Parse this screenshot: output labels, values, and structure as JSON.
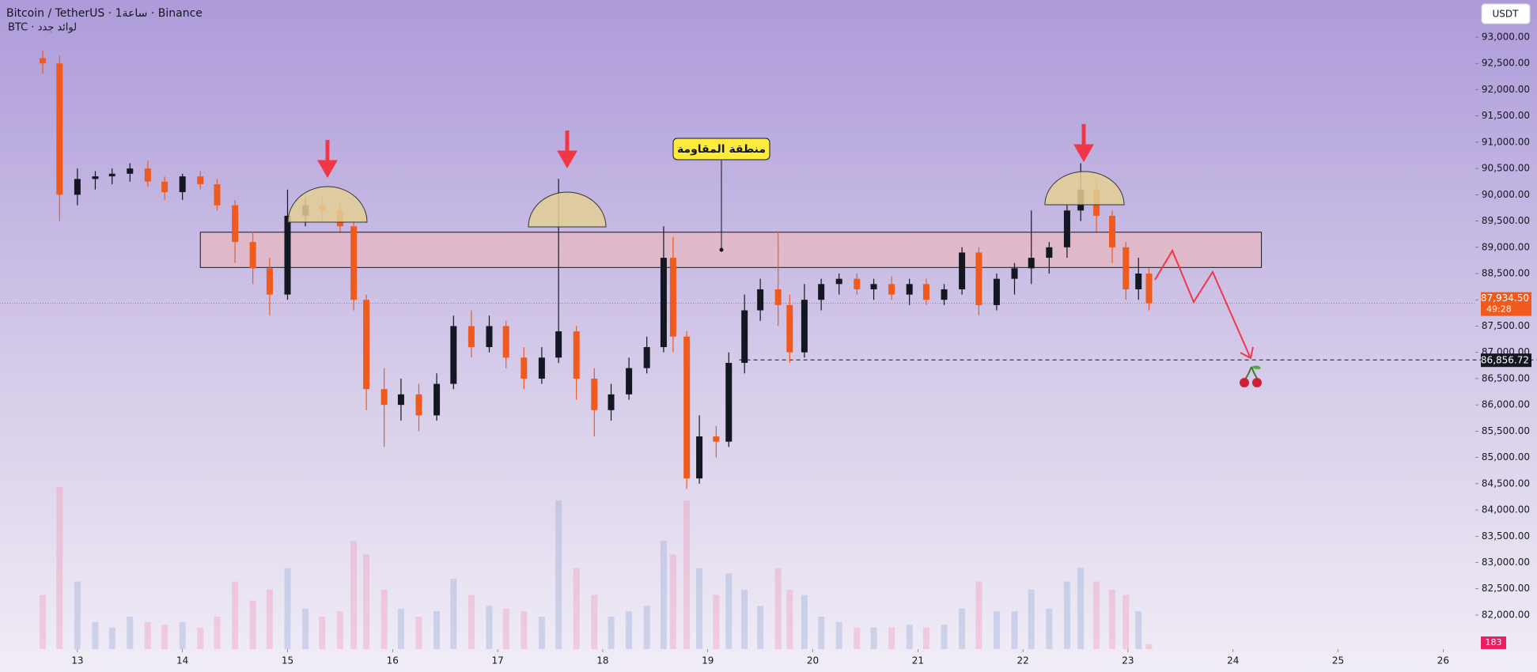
{
  "chart_data": {
    "type": "candlestick",
    "title": "Bitcoin / TetherUS · 1ساعة · Binance",
    "subtitle": "BTC · لوائد جدد",
    "currency": "USDT",
    "up_color": "#131722",
    "down_color": "#f05a1e",
    "x": [
      12.67,
      12.83,
      13.0,
      13.17,
      13.33,
      13.5,
      13.67,
      13.83,
      14.0,
      14.17,
      14.33,
      14.5,
      14.67,
      14.83,
      15.0,
      15.17,
      15.33,
      15.5,
      15.63,
      15.75,
      15.92,
      16.08,
      16.25,
      16.42,
      16.58,
      16.75,
      16.92,
      17.08,
      17.25,
      17.42,
      17.58,
      17.75,
      17.92,
      18.08,
      18.25,
      18.42,
      18.58,
      18.67,
      18.8,
      18.92,
      19.08,
      19.2,
      19.35,
      19.5,
      19.67,
      19.78,
      19.92,
      20.08,
      20.25,
      20.42,
      20.58,
      20.75,
      20.92,
      21.08,
      21.25,
      21.42,
      21.58,
      21.75,
      21.92,
      22.08,
      22.25,
      22.42,
      22.55,
      22.7,
      22.85,
      22.98,
      23.1,
      23.2
    ],
    "open": [
      92600,
      92500,
      90000,
      90300,
      90350,
      90400,
      90500,
      90250,
      90050,
      90350,
      90200,
      89800,
      89100,
      88600,
      88100,
      89600,
      89800,
      89700,
      89400,
      88000,
      86300,
      86000,
      86200,
      85800,
      86400,
      87500,
      87100,
      87500,
      86900,
      86500,
      86900,
      87400,
      86500,
      85900,
      86200,
      86700,
      87100,
      88800,
      87300,
      84600,
      85400,
      85300,
      86800,
      87800,
      88200,
      87900,
      87000,
      88000,
      88300,
      88400,
      88200,
      88300,
      88100,
      88300,
      88000,
      88200,
      88900,
      87900,
      88400,
      88600,
      88800,
      89000,
      89700,
      90100,
      89600,
      89000,
      88200,
      88500
    ],
    "high": [
      92750,
      92650,
      90500,
      90450,
      90500,
      90600,
      90650,
      90350,
      90400,
      90450,
      90300,
      89900,
      89300,
      88800,
      90100,
      89950,
      90000,
      89900,
      89500,
      88100,
      86700,
      86500,
      86400,
      86600,
      87700,
      87800,
      87700,
      87600,
      87100,
      87100,
      90300,
      87500,
      86700,
      86400,
      86900,
      87300,
      89400,
      89200,
      87400,
      85800,
      85600,
      87000,
      88100,
      88400,
      89300,
      88100,
      88300,
      88400,
      88500,
      88500,
      88400,
      88450,
      88400,
      88400,
      88300,
      89000,
      89000,
      88500,
      88700,
      89700,
      89100,
      89800,
      90600,
      90300,
      89700,
      89100,
      88800,
      88600
    ],
    "low": [
      92300,
      89500,
      89800,
      90100,
      90200,
      90250,
      90150,
      89900,
      89900,
      90100,
      89700,
      88700,
      88300,
      87700,
      88000,
      89400,
      89500,
      89300,
      87800,
      85900,
      85200,
      85700,
      85500,
      85700,
      86300,
      86900,
      87000,
      86700,
      86300,
      86400,
      86800,
      86100,
      85400,
      85700,
      86100,
      86600,
      87000,
      87000,
      84400,
      84500,
      85000,
      85200,
      86600,
      87600,
      87500,
      86800,
      86900,
      87800,
      88100,
      88100,
      88000,
      88000,
      87900,
      87900,
      87900,
      88100,
      87700,
      87800,
      88100,
      88300,
      88500,
      88800,
      89500,
      89300,
      88700,
      88000,
      88000,
      87800
    ],
    "close": [
      92500,
      90000,
      90300,
      90350,
      90400,
      90500,
      90250,
      90050,
      90350,
      90200,
      89800,
      89100,
      88600,
      88100,
      89600,
      89800,
      89700,
      89400,
      88000,
      86300,
      86000,
      86200,
      85800,
      86400,
      87500,
      87100,
      87500,
      86900,
      86500,
      86900,
      87400,
      86500,
      85900,
      86200,
      86700,
      87100,
      88800,
      87300,
      84600,
      85400,
      85300,
      86800,
      87800,
      88200,
      87900,
      87000,
      88000,
      88300,
      88400,
      88200,
      88300,
      88100,
      88300,
      88000,
      88200,
      88900,
      87900,
      88400,
      88600,
      88800,
      89000,
      89700,
      90100,
      89600,
      89000,
      88200,
      88500,
      87934.5
    ],
    "volume": [
      2000,
      6000,
      2500,
      1000,
      800,
      1200,
      1000,
      900,
      1000,
      800,
      1200,
      2500,
      1800,
      2200,
      3000,
      1500,
      1200,
      1400,
      4000,
      3500,
      2200,
      1500,
      1200,
      1400,
      2600,
      2000,
      1600,
      1500,
      1400,
      1200,
      5500,
      3000,
      2000,
      1200,
      1400,
      1600,
      4000,
      3500,
      5500,
      3000,
      2000,
      2800,
      2200,
      1600,
      3000,
      2200,
      2000,
      1200,
      1000,
      800,
      800,
      800,
      900,
      800,
      900,
      1500,
      2500,
      1400,
      1400,
      2200,
      1500,
      2500,
      3000,
      2500,
      2200,
      2000,
      1400,
      183
    ],
    "xlim": [
      12.263,
      26.306
    ],
    "ylim": [
      81352,
      93707
    ],
    "xticks": [
      13,
      14,
      15,
      16,
      17,
      18,
      19,
      20,
      21,
      22,
      23,
      24,
      25,
      26
    ],
    "yticks": [
      {
        "value": 82000,
        "label": "82,000.00"
      },
      {
        "value": 82500,
        "label": "82,500.00"
      },
      {
        "value": 83000,
        "label": "83,000.00"
      },
      {
        "value": 83500,
        "label": "83,500.00"
      },
      {
        "value": 84000,
        "label": "84,000.00"
      },
      {
        "value": 84500,
        "label": "84,500.00"
      },
      {
        "value": 85000,
        "label": "85,000.00"
      },
      {
        "value": 85500,
        "label": "85,500.00"
      },
      {
        "value": 86000,
        "label": "86,000.00"
      },
      {
        "value": 86500,
        "label": "86,500.00"
      },
      {
        "value": 87000,
        "label": "87,000.00"
      },
      {
        "value": 87500,
        "label": "87,500.00"
      },
      {
        "value": 88000,
        "label": "88,000.00"
      },
      {
        "value": 88500,
        "label": "88,500.00"
      },
      {
        "value": 89000,
        "label": "89,000.00"
      },
      {
        "value": 89500,
        "label": "89,500.00"
      },
      {
        "value": 90000,
        "label": "90,000.00"
      },
      {
        "value": 90500,
        "label": "90,500.00"
      },
      {
        "value": 91000,
        "label": "91,000.00"
      },
      {
        "value": 91500,
        "label": "91,500.00"
      },
      {
        "value": 92000,
        "label": "92,000.00"
      },
      {
        "value": 92500,
        "label": "92,500.00"
      },
      {
        "value": 93000,
        "label": "93,000.00"
      }
    ],
    "last_price": {
      "value": 87934.5,
      "label": "87,934.50"
    },
    "countdown": "49:28",
    "target": {
      "value": 86856.72,
      "label": "86,856.72",
      "x": 19.3
    },
    "resistance_zone": {
      "label": "منطقة المقاومة",
      "low": 88616,
      "high": 89287,
      "x": [
        14.17,
        24.27
      ]
    }
  }
}
